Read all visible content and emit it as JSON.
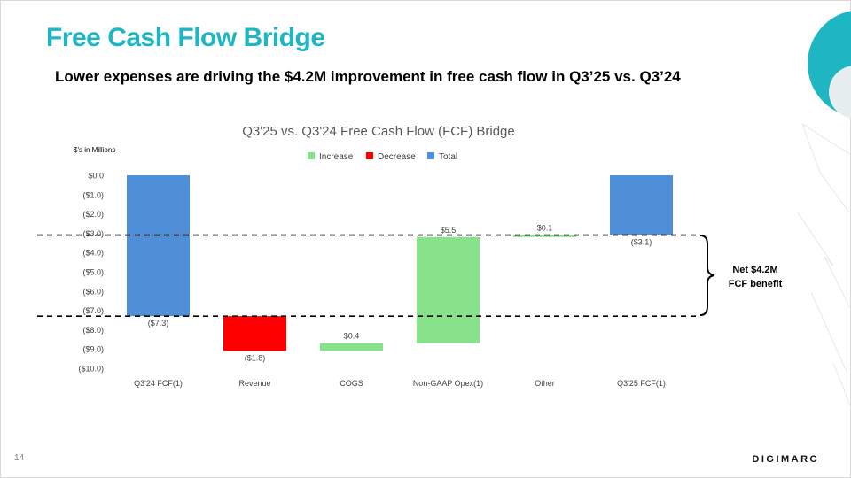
{
  "slide": {
    "title": "Free Cash Flow Bridge",
    "subtitle": "Lower expenses are driving the $4.2M improvement in free cash flow in Q3’25 vs. Q3’24",
    "page_number": "14",
    "logo_text": "DIGIMARC"
  },
  "colors": {
    "accent": "#1eb6c3",
    "increase": "#88e28c",
    "decrease": "#ff0000",
    "total": "#4f8fd8"
  },
  "chart_data": {
    "type": "waterfall",
    "title": "Q3'25 vs. Q3'24 Free Cash Flow (FCF) Bridge",
    "unit_label": "$'s in Millions",
    "legend": [
      "Increase",
      "Decrease",
      "Total"
    ],
    "legend_position": "top-center",
    "ylim": [
      -10,
      0
    ],
    "yticks": [
      {
        "value": 0,
        "label": "$0.0"
      },
      {
        "value": -1,
        "label": "($1.0)"
      },
      {
        "value": -2,
        "label": "($2.0)"
      },
      {
        "value": -3,
        "label": "($3.0)"
      },
      {
        "value": -4,
        "label": "($4.0)"
      },
      {
        "value": -5,
        "label": "($5.0)"
      },
      {
        "value": -6,
        "label": "($6.0)"
      },
      {
        "value": -7,
        "label": "($7.0)"
      },
      {
        "value": -8,
        "label": "($8.0)"
      },
      {
        "value": -9,
        "label": "($9.0)"
      },
      {
        "value": -10,
        "label": "($10.0)"
      }
    ],
    "bars": [
      {
        "category": "Q3'24 FCF(1)",
        "kind": "total",
        "start": 0,
        "end": -7.3,
        "label": "($7.3)"
      },
      {
        "category": "Revenue",
        "kind": "decrease",
        "start": -7.3,
        "end": -9.1,
        "label": "($1.8)"
      },
      {
        "category": "COGS",
        "kind": "increase",
        "start": -9.1,
        "end": -8.7,
        "label": "$0.4"
      },
      {
        "category": "Non-GAAP Opex(1)",
        "kind": "increase",
        "start": -8.7,
        "end": -3.2,
        "label": "$5.5"
      },
      {
        "category": "Other",
        "kind": "increase",
        "start": -3.2,
        "end": -3.1,
        "label": "$0.1"
      },
      {
        "category": "Q3'25 FCF(1)",
        "kind": "total",
        "start": 0,
        "end": -3.1,
        "label": "($3.1)"
      }
    ],
    "reference_lines": [
      -3.1,
      -7.3
    ],
    "annotation": {
      "line1": "Net $4.2M",
      "line2": "FCF benefit"
    }
  }
}
